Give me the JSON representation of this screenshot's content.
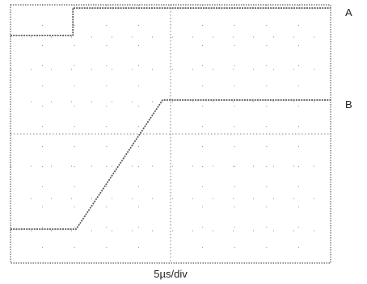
{
  "chart_data": {
    "type": "line",
    "xlabel": "5µs/div",
    "divisions": {
      "x": 10,
      "y": 8
    },
    "x_unit": "div",
    "y_unit": "div",
    "grid": true,
    "series": [
      {
        "name": "A",
        "x": [
          0,
          1.95,
          1.95,
          10
        ],
        "y": [
          7.05,
          7.05,
          7.9,
          7.9
        ]
      },
      {
        "name": "B",
        "x": [
          0,
          2.05,
          4.75,
          10
        ],
        "y": [
          1.05,
          1.05,
          5.05,
          5.05
        ]
      }
    ]
  },
  "colors": {
    "trace": "#5a5a5a",
    "grid": "#8a8a8a",
    "frame": "#5a5a5a",
    "text": "#222222"
  }
}
